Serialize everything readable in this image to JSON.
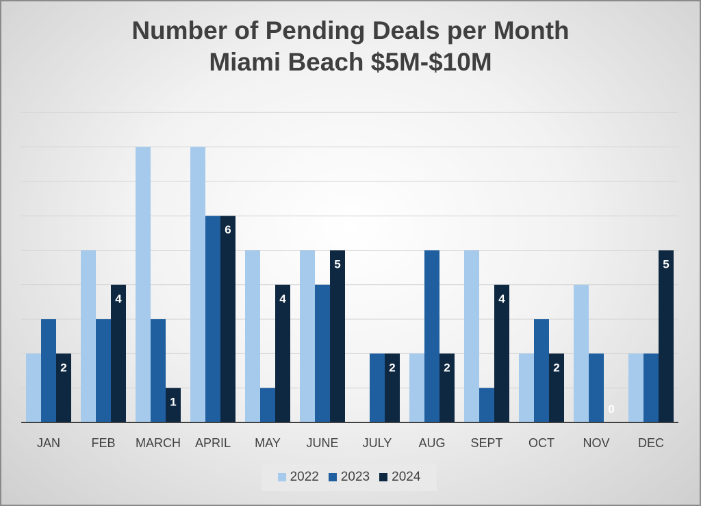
{
  "chart_data": {
    "type": "bar",
    "title": "Number of Pending Deals per Month",
    "subtitle": "Miami Beach $5M-$10M",
    "categories": [
      "JAN",
      "FEB",
      "MARCH",
      "APRIL",
      "MAY",
      "JUNE",
      "JULY",
      "AUG",
      "SEPT",
      "OCT",
      "NOV",
      "DEC"
    ],
    "series": [
      {
        "name": "2022",
        "color": "#a6caec",
        "values": [
          2,
          5,
          8,
          8,
          5,
          5,
          0,
          2,
          5,
          2,
          4,
          2
        ],
        "labels": false
      },
      {
        "name": "2023",
        "color": "#1f5f9f",
        "values": [
          3,
          3,
          3,
          6,
          1,
          4,
          2,
          5,
          1,
          3,
          2,
          2
        ],
        "labels": false
      },
      {
        "name": "2024",
        "color": "#0e2841",
        "values": [
          2,
          4,
          1,
          6,
          4,
          5,
          2,
          2,
          4,
          2,
          0,
          5
        ],
        "labels": true
      }
    ],
    "ylim": [
      0,
      9
    ],
    "grid": true,
    "legend": "bottom",
    "xlabel": "",
    "ylabel": ""
  }
}
